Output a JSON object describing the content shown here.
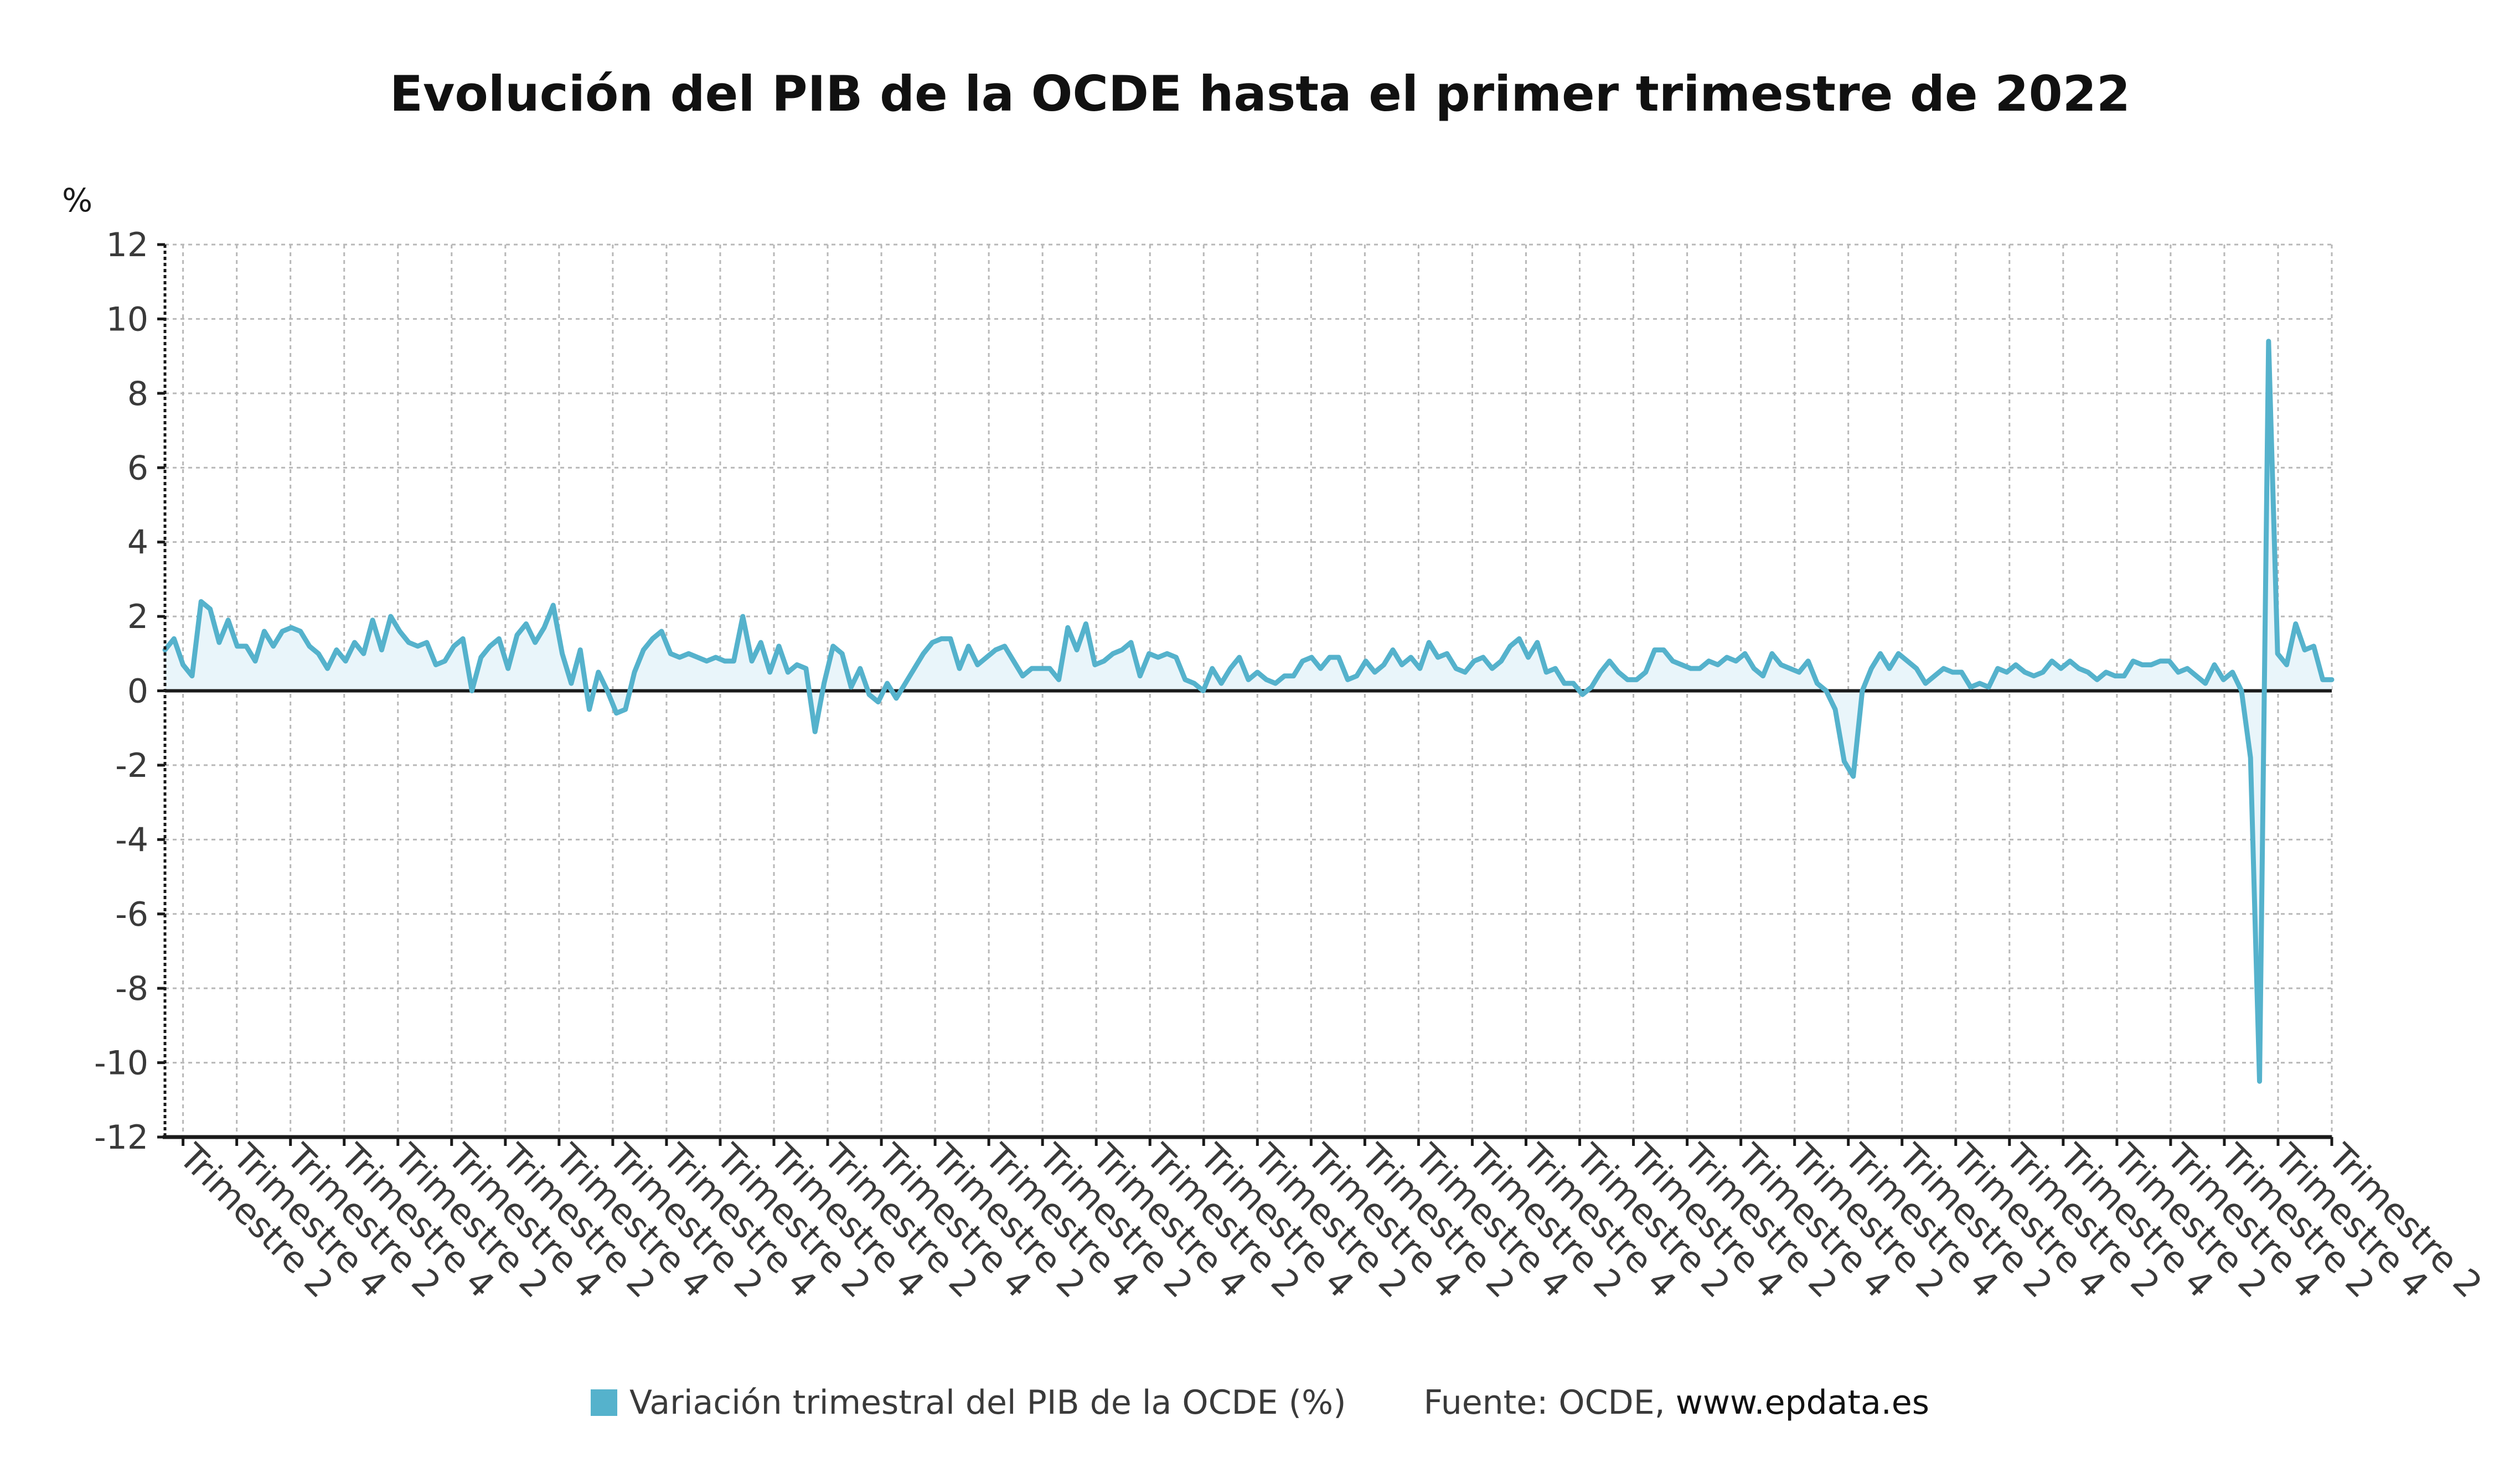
{
  "colors": {
    "series": "#55b2cc",
    "area": "#e9f5fa",
    "grid": "#b8b8b8",
    "axis": "#1a1a1a",
    "text": "#3a3a3a"
  },
  "legend": {
    "series_label": "Variación trimestral del PIB de la OCDE (%)",
    "source_prefix": "Fuente: OCDE, ",
    "source_site": "www.epdata.es"
  },
  "chart_data": {
    "type": "line",
    "title": "Evolución del PIB de la OCDE hasta el primer trimestre de 2022",
    "ylabel": "%",
    "xlabel": "",
    "ylim": [
      -12,
      12
    ],
    "yticks": [
      12,
      10,
      8,
      6,
      4,
      2,
      0,
      -2,
      -4,
      -6,
      -8,
      -10,
      -12
    ],
    "grid": true,
    "legend_position": "bottom",
    "xtick_labels": [
      "Trimestre 2",
      "Trimestre 4",
      "Trimestre 2",
      "Trimestre 4",
      "Trimestre 2",
      "Trimestre 4",
      "Trimestre 2",
      "Trimestre 4",
      "Trimestre 2",
      "Trimestre 4",
      "Trimestre 2",
      "Trimestre 4",
      "Trimestre 2",
      "Trimestre 4",
      "Trimestre 2",
      "Trimestre 4",
      "Trimestre 2",
      "Trimestre 4",
      "Trimestre 2",
      "Trimestre 4",
      "Trimestre 2",
      "Trimestre 4",
      "Trimestre 2",
      "Trimestre 4",
      "Trimestre 2",
      "Trimestre 4",
      "Trimestre 2",
      "Trimestre 4",
      "Trimestre 2",
      "Trimestre 4",
      "Trimestre 2",
      "Trimestre 4",
      "Trimestre 2",
      "Trimestre 4",
      "Trimestre 2",
      "Trimestre 4",
      "Trimestre 2",
      "Trimestre 4",
      "Trimestre 2",
      "Trimestre 4",
      "Trimestre 2"
    ],
    "series": [
      {
        "name": "Variación trimestral del PIB de la OCDE (%)",
        "values": [
          1.1,
          1.4,
          0.7,
          0.4,
          2.4,
          2.2,
          1.3,
          1.9,
          1.2,
          1.2,
          0.8,
          1.6,
          1.2,
          1.6,
          1.7,
          1.6,
          1.2,
          1.0,
          0.6,
          1.1,
          0.8,
          1.3,
          1.0,
          1.9,
          1.1,
          2.0,
          1.6,
          1.3,
          1.2,
          1.3,
          0.7,
          0.8,
          1.2,
          1.4,
          0.0,
          0.9,
          1.2,
          1.4,
          0.6,
          1.5,
          1.8,
          1.3,
          1.7,
          2.3,
          1.0,
          0.2,
          1.1,
          -0.5,
          0.5,
          0.0,
          -0.6,
          -0.5,
          0.5,
          1.1,
          1.4,
          1.6,
          1.0,
          0.9,
          1.0,
          0.9,
          0.8,
          0.9,
          0.8,
          0.8,
          2.0,
          0.8,
          1.3,
          0.5,
          1.2,
          0.5,
          0.7,
          0.6,
          -1.1,
          0.2,
          1.2,
          1.0,
          0.1,
          0.6,
          -0.1,
          -0.3,
          0.2,
          -0.2,
          0.2,
          0.6,
          1.0,
          1.3,
          1.4,
          1.4,
          0.6,
          1.2,
          0.7,
          0.9,
          1.1,
          1.2,
          0.8,
          0.4,
          0.6,
          0.6,
          0.6,
          0.3,
          1.7,
          1.1,
          1.8,
          0.7,
          0.8,
          1.0,
          1.1,
          1.3,
          0.4,
          1.0,
          0.9,
          1.0,
          0.9,
          0.3,
          0.2,
          0.0,
          0.6,
          0.2,
          0.6,
          0.9,
          0.3,
          0.5,
          0.3,
          0.2,
          0.4,
          0.4,
          0.8,
          0.9,
          0.6,
          0.9,
          0.9,
          0.3,
          0.4,
          0.8,
          0.5,
          0.7,
          1.1,
          0.7,
          0.9,
          0.6,
          1.3,
          0.9,
          1.0,
          0.6,
          0.5,
          0.8,
          0.9,
          0.6,
          0.8,
          1.2,
          1.4,
          0.9,
          1.3,
          0.5,
          0.6,
          0.2,
          0.2,
          -0.1,
          0.1,
          0.5,
          0.8,
          0.5,
          0.3,
          0.3,
          0.5,
          1.1,
          1.1,
          0.8,
          0.7,
          0.6,
          0.6,
          0.8,
          0.7,
          0.9,
          0.8,
          1.0,
          0.6,
          0.4,
          1.0,
          0.7,
          0.6,
          0.5,
          0.8,
          0.2,
          0.0,
          -0.5,
          -1.9,
          -2.3,
          0.0,
          0.6,
          1.0,
          0.6,
          1.0,
          0.8,
          0.6,
          0.2,
          0.4,
          0.6,
          0.5,
          0.5,
          0.1,
          0.2,
          0.1,
          0.6,
          0.5,
          0.7,
          0.5,
          0.4,
          0.5,
          0.8,
          0.6,
          0.8,
          0.6,
          0.5,
          0.3,
          0.5,
          0.4,
          0.4,
          0.8,
          0.7,
          0.7,
          0.8,
          0.8,
          0.5,
          0.6,
          0.4,
          0.2,
          0.7,
          0.3,
          0.5,
          0.0,
          -1.8,
          -10.5,
          9.4,
          1.0,
          0.7,
          1.8,
          1.1,
          1.2,
          0.3,
          0.3
        ]
      }
    ]
  }
}
